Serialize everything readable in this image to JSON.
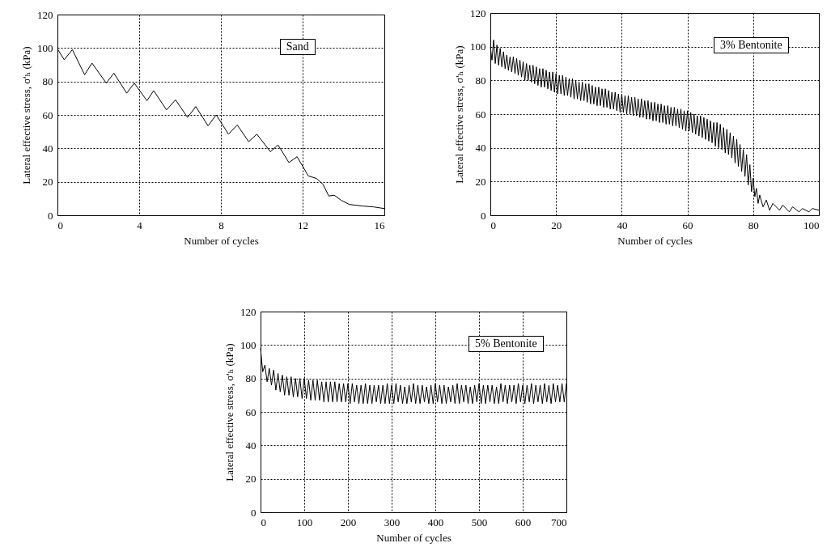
{
  "chart_data": [
    {
      "type": "line",
      "xlabel": "Number of cycles",
      "ylabel": "Lateral effective stress, σ'ₕ (kPa)",
      "annotations": [
        "Sand"
      ],
      "grid": true,
      "xlim": [
        0,
        16
      ],
      "ylim": [
        0,
        120
      ],
      "xticks": [
        0,
        4,
        8,
        12,
        16
      ],
      "yticks": [
        0,
        20,
        40,
        60,
        80,
        100,
        120
      ],
      "x": [
        0,
        0.33,
        0.73,
        1.33,
        1.69,
        2.39,
        2.76,
        3.39,
        3.76,
        4.38,
        4.71,
        5.34,
        5.78,
        6.37,
        6.77,
        7.37,
        7.77,
        8.37,
        8.8,
        9.36,
        9.76,
        10.42,
        10.8,
        11.33,
        11.73,
        12.28,
        12.68,
        13.0,
        13.28,
        13.55,
        13.88,
        14.28,
        14.94,
        15.47,
        16
      ],
      "series": [
        {
          "color": "#000000",
          "values": [
            99.5,
            93,
            99,
            84,
            91,
            79,
            85,
            73,
            79,
            68.5,
            74.5,
            63,
            69,
            58.5,
            65,
            53.5,
            60,
            48.5,
            54,
            44,
            48.5,
            38,
            42,
            31.5,
            35,
            23.5,
            22,
            18.5,
            11.5,
            12,
            9,
            6.5,
            5.5,
            5,
            4
          ]
        }
      ]
    },
    {
      "type": "line",
      "xlabel": "Number of cycles",
      "ylabel": "Lateral effective stress, σ'ₕ (kPa)",
      "annotations": [
        "3% Bentonite"
      ],
      "grid": true,
      "xlim": [
        0,
        100
      ],
      "ylim": [
        0,
        120
      ],
      "xticks": [
        0,
        20,
        40,
        60,
        80,
        100
      ],
      "yticks": [
        0,
        20,
        40,
        60,
        80,
        100,
        120
      ],
      "x": [
        0,
        0.5,
        1,
        1.5,
        2,
        2.5,
        3,
        3.5,
        4,
        4.5,
        5,
        5.5,
        6,
        6.5,
        7,
        7.5,
        8,
        8.5,
        9,
        9.5,
        10,
        10.5,
        11,
        11.5,
        12,
        12.5,
        13,
        13.5,
        14,
        14.5,
        15,
        15.5,
        16,
        16.5,
        17,
        17.5,
        18,
        18.5,
        19,
        19.5,
        20,
        20.5,
        21,
        21.5,
        22,
        22.5,
        23,
        23.5,
        24,
        24.5,
        25,
        25.5,
        26,
        26.5,
        27,
        27.5,
        28,
        28.5,
        29,
        29.5,
        30,
        30.5,
        31,
        31.5,
        32,
        32.5,
        33,
        33.5,
        34,
        34.5,
        35,
        35.5,
        36,
        36.5,
        37,
        37.5,
        38,
        38.5,
        39,
        39.5,
        40,
        40.5,
        41,
        41.5,
        42,
        42.5,
        43,
        43.5,
        44,
        44.5,
        45,
        45.5,
        46,
        46.5,
        47,
        47.5,
        48,
        48.5,
        49,
        49.5,
        50,
        50.5,
        51,
        51.5,
        52,
        52.5,
        53,
        53.5,
        54,
        54.5,
        55,
        55.5,
        56,
        56.5,
        57,
        57.5,
        58,
        58.5,
        59,
        59.5,
        60,
        60.5,
        61,
        61.5,
        62,
        62.5,
        63,
        63.5,
        64,
        64.5,
        65,
        65.5,
        66,
        66.5,
        67,
        67.5,
        68,
        68.5,
        69,
        69.5,
        70,
        70.5,
        71,
        71.5,
        72,
        72.5,
        73,
        73.5,
        74,
        74.5,
        75,
        75.5,
        76,
        76.5,
        77,
        77.5,
        78,
        78.5,
        79,
        79.5,
        80,
        80.5,
        81,
        81.5,
        82,
        83,
        84,
        85,
        86,
        88,
        89,
        91,
        92,
        94,
        95,
        97,
        98,
        100
      ],
      "series": [
        {
          "color": "#000000",
          "values": [
            100,
            92,
            104,
            90,
            101,
            89,
            99,
            88,
            97,
            87,
            95,
            86,
            94,
            85,
            94,
            84,
            93,
            83,
            92,
            82,
            91,
            80,
            90,
            80,
            89,
            79,
            89,
            78,
            88,
            77,
            87,
            76,
            87,
            76,
            86,
            75,
            85,
            74,
            85,
            73,
            84,
            72,
            83,
            72,
            83,
            71,
            82,
            71,
            81,
            70,
            81,
            69,
            80,
            69,
            79,
            68,
            79,
            68,
            78,
            67,
            78,
            66,
            77,
            66,
            76,
            65,
            76,
            65,
            75,
            64,
            75,
            64,
            74,
            63,
            73,
            63,
            73,
            62,
            72,
            61,
            72,
            61,
            71,
            60,
            71,
            60,
            70,
            59,
            70,
            59,
            69,
            58,
            69,
            58,
            68,
            57,
            68,
            57,
            67,
            56,
            67,
            56,
            66,
            55,
            66,
            55,
            65,
            54,
            65,
            54,
            64,
            53,
            64,
            53,
            63,
            52,
            63,
            51,
            62,
            50,
            62,
            50,
            61,
            49,
            60,
            48,
            59,
            47,
            59,
            46,
            58,
            45,
            57,
            44,
            56,
            43,
            55,
            41,
            55,
            40,
            54,
            39,
            52,
            37,
            51,
            36,
            49,
            34,
            47,
            31,
            45,
            29,
            42,
            26,
            39,
            23,
            36,
            18,
            30,
            14,
            22,
            11,
            16,
            7,
            12,
            5,
            9,
            3,
            7,
            3,
            6,
            2,
            5,
            2,
            4,
            2,
            4,
            3
          ]
        }
      ]
    },
    {
      "type": "line",
      "xlabel": "Number of cycles",
      "ylabel": "Lateral effective stress, σ'ₕ (kPa)",
      "annotations": [
        "5% Bentonite"
      ],
      "grid": true,
      "xlim": [
        0,
        700
      ],
      "ylim": [
        0,
        120
      ],
      "xticks": [
        0,
        100,
        200,
        300,
        400,
        500,
        600,
        700
      ],
      "yticks": [
        0,
        20,
        40,
        60,
        80,
        100,
        120
      ],
      "x": [
        0,
        5,
        10,
        15,
        20,
        25,
        30,
        35,
        40,
        45,
        50,
        55,
        60,
        65,
        70,
        75,
        80,
        85,
        90,
        95,
        100,
        105,
        110,
        115,
        120,
        125,
        130,
        135,
        140,
        145,
        150,
        155,
        160,
        165,
        170,
        175,
        180,
        185,
        190,
        195,
        200,
        205,
        210,
        215,
        220,
        225,
        230,
        235,
        240,
        245,
        250,
        255,
        260,
        265,
        270,
        275,
        280,
        285,
        290,
        295,
        300,
        305,
        310,
        315,
        320,
        325,
        330,
        335,
        340,
        345,
        350,
        355,
        360,
        365,
        370,
        375,
        380,
        385,
        390,
        395,
        400,
        405,
        410,
        415,
        420,
        425,
        430,
        435,
        440,
        445,
        450,
        455,
        460,
        465,
        470,
        475,
        480,
        485,
        490,
        495,
        500,
        505,
        510,
        515,
        520,
        525,
        530,
        535,
        540,
        545,
        550,
        555,
        560,
        565,
        570,
        575,
        580,
        585,
        590,
        595,
        600,
        605,
        610,
        615,
        620,
        625,
        630,
        635,
        640,
        645,
        650,
        655,
        660,
        665,
        670,
        675,
        680,
        685,
        690,
        695,
        700
      ],
      "series": [
        {
          "color": "#000000",
          "values": [
            98,
            84,
            88,
            78,
            86,
            76,
            85,
            73,
            83,
            72,
            82,
            70,
            81,
            70,
            81,
            69,
            80,
            69,
            80,
            68,
            80,
            68,
            79,
            67,
            79,
            67,
            79,
            67,
            78,
            66,
            78,
            66,
            78,
            66,
            78,
            66,
            77,
            66,
            77,
            66,
            77,
            65,
            77,
            66,
            76,
            65,
            76,
            65,
            77,
            65,
            76,
            65,
            76,
            66,
            76,
            65,
            76,
            65,
            77,
            65,
            76,
            65,
            77,
            66,
            76,
            65,
            75,
            65,
            76,
            66,
            77,
            65,
            76,
            65,
            76,
            66,
            75,
            65,
            76,
            65,
            77,
            66,
            76,
            65,
            76,
            65,
            75,
            66,
            76,
            65,
            77,
            65,
            76,
            66,
            76,
            65,
            75,
            65,
            76,
            66,
            77,
            65,
            76,
            65,
            76,
            66,
            76,
            65,
            75,
            65,
            77,
            66,
            76,
            65,
            76,
            66,
            76,
            65,
            77,
            66,
            76,
            65,
            76,
            66,
            77,
            65,
            76,
            66,
            76,
            65,
            77,
            66,
            76,
            65,
            77,
            66,
            76,
            66,
            77,
            66,
            77
          ]
        }
      ]
    }
  ]
}
